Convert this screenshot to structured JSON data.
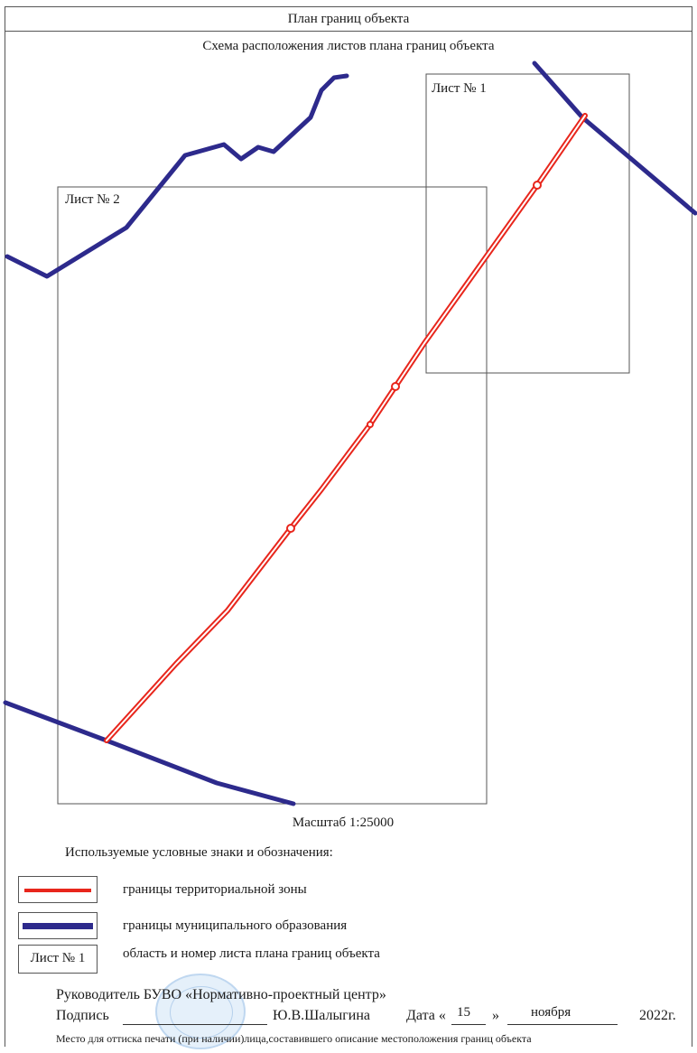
{
  "header": {
    "title": "План границ объекта"
  },
  "scheme": {
    "title": "Схема расположения листов плана границ объекта"
  },
  "sheets": [
    {
      "label": "Лист № 1"
    },
    {
      "label": "Лист № 2"
    }
  ],
  "scale": {
    "label": "Масштаб 1:25000"
  },
  "legend": {
    "title": "Используемые условные знаки и обозначения:",
    "items": [
      {
        "symbol": "red-double-line",
        "text": "границы территориальной зоны",
        "color": "#e8261c"
      },
      {
        "symbol": "blue-thick-line",
        "text": "границы муниципального образования",
        "color": "#2d2a8c"
      },
      {
        "symbol": "sheet-box",
        "box_label": "Лист № 1",
        "text": "область и номер листа плана границ объекта"
      }
    ]
  },
  "signature": {
    "org_line": "Руководитель БУВО «Нормативно-проектный центр»",
    "sign_label": "Подпись",
    "name": "Ю.В.Шалыгина",
    "date_label": "Дата «",
    "day": "15",
    "quote_close": "»",
    "month": "ноября",
    "year": "2022г.",
    "stamp_note": "Место для оттиска печати (при наличии)лица,составившего описание местоположения границ объекта"
  },
  "colors": {
    "zone_boundary": "#e8261c",
    "municipal_boundary": "#2d2a8c",
    "frame": "#555555"
  }
}
